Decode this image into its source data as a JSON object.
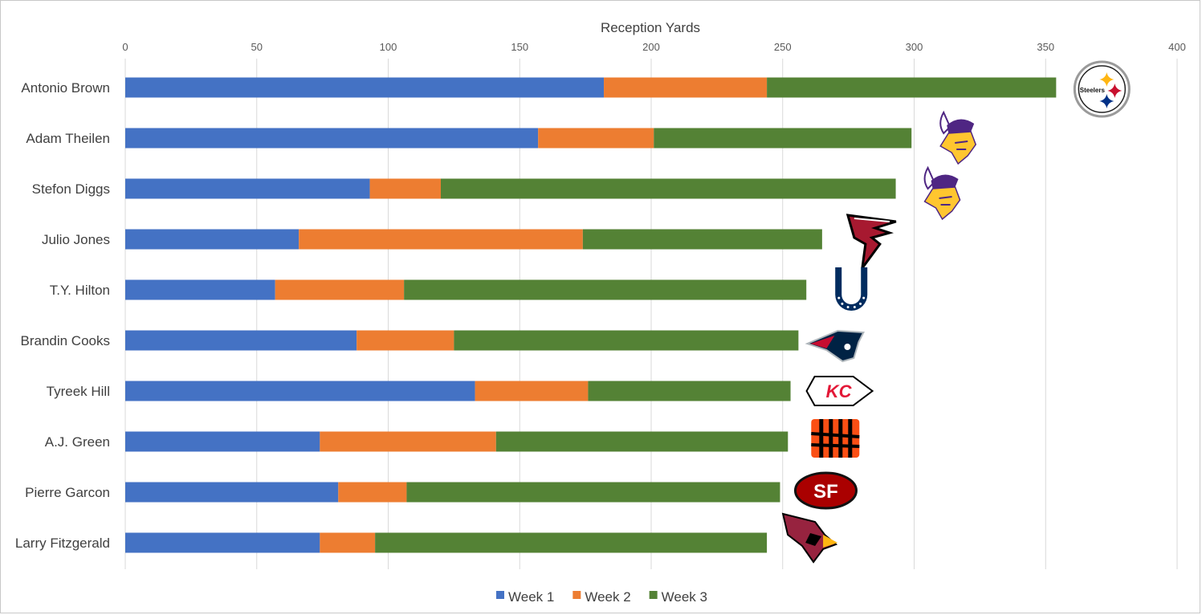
{
  "chart_data": {
    "type": "bar",
    "orientation": "horizontal",
    "stacked": true,
    "xlabel": "Reception Yards",
    "xlim": [
      0,
      400
    ],
    "x_ticks": [
      0,
      50,
      100,
      150,
      200,
      250,
      300,
      350,
      400
    ],
    "grid": "vertical",
    "legend_position": "bottom",
    "categories": [
      "Antonio Brown",
      "Adam Theilen",
      "Stefon Diggs",
      "Julio Jones",
      "T.Y. Hilton",
      "Brandin Cooks",
      "Tyreek Hill",
      "A.J. Green",
      "Pierre Garcon",
      "Larry Fitzgerald"
    ],
    "series": [
      {
        "name": "Week 1",
        "color": "#4472C4",
        "values": [
          182,
          157,
          93,
          66,
          57,
          88,
          133,
          74,
          81,
          74
        ]
      },
      {
        "name": "Week 2",
        "color": "#ED7D31",
        "values": [
          62,
          44,
          27,
          108,
          49,
          37,
          43,
          67,
          26,
          21
        ]
      },
      {
        "name": "Week 3",
        "color": "#548235",
        "values": [
          110,
          98,
          173,
          91,
          153,
          131,
          77,
          111,
          142,
          149
        ]
      }
    ],
    "team_logos": [
      "steelers-logo",
      "vikings-logo",
      "vikings-logo",
      "falcons-logo",
      "colts-logo",
      "patriots-logo",
      "chiefs-logo",
      "bengals-logo",
      "49ers-logo",
      "cardinals-logo"
    ],
    "logo_text": {
      "steelers": "Steelers",
      "chiefs": "KC",
      "niners": "SF"
    }
  }
}
